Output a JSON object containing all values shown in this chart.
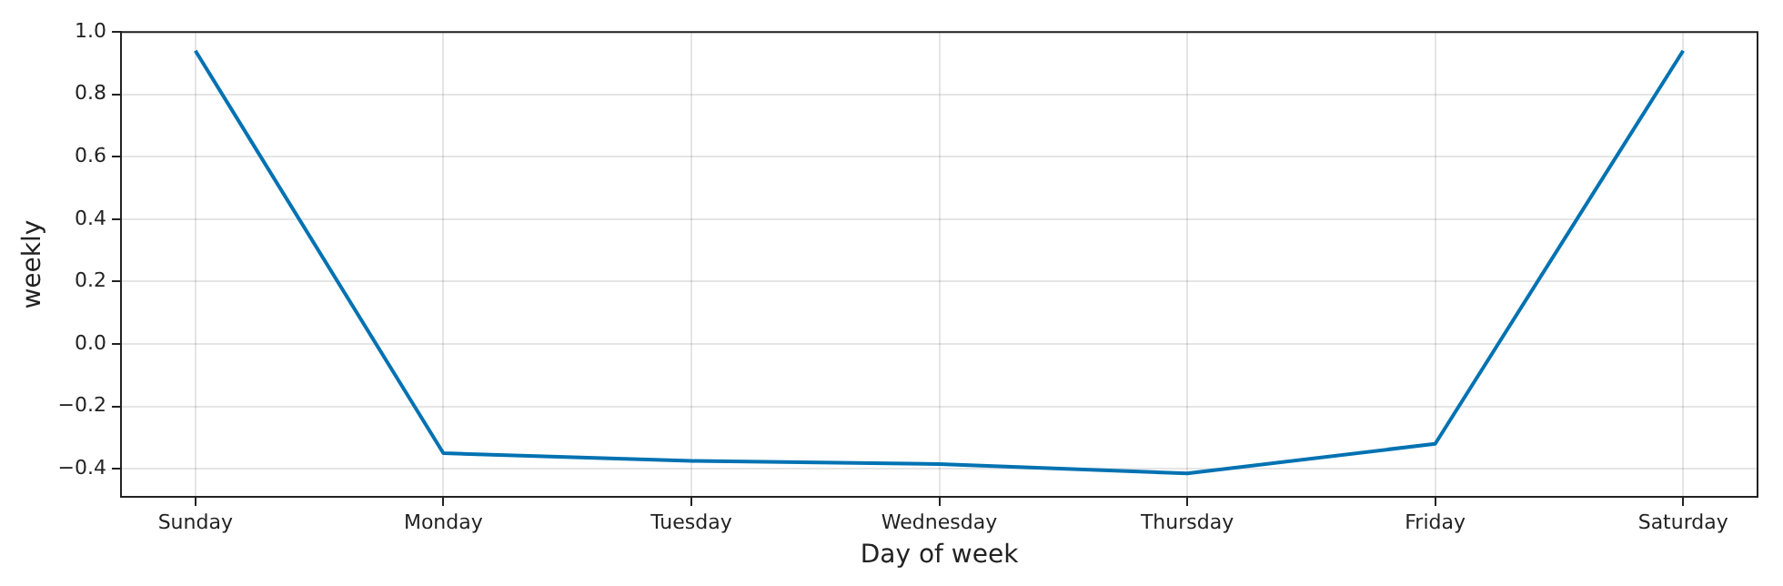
{
  "chart_data": {
    "type": "line",
    "xlabel": "Day of week",
    "ylabel": "weekly",
    "categories": [
      "Sunday",
      "Monday",
      "Tuesday",
      "Wednesday",
      "Thursday",
      "Friday",
      "Saturday"
    ],
    "series": [
      {
        "color": "#0072b2",
        "values": [
          0.94,
          -0.35,
          -0.375,
          -0.385,
          -0.415,
          -0.32,
          0.94
        ]
      }
    ],
    "ylim": [
      -0.49,
      1.0
    ],
    "yticks": [
      {
        "value": -0.4,
        "label": "−0.4"
      },
      {
        "value": -0.2,
        "label": "−0.2"
      },
      {
        "value": 0,
        "label": "0.0"
      },
      0.2,
      0.4,
      0.6,
      0.8,
      {
        "value": 1,
        "label": "1.0"
      }
    ],
    "grid": true,
    "legend": false,
    "marker": "none",
    "line_style": "solid"
  }
}
